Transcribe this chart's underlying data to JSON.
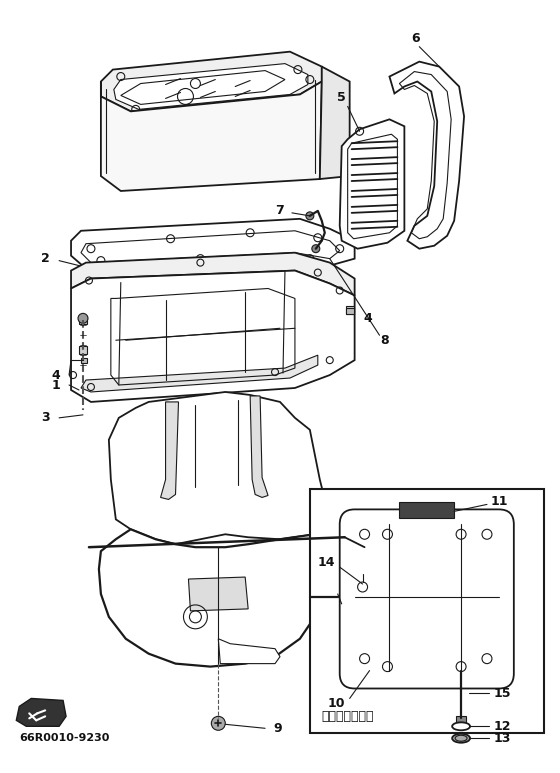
{
  "bg_color": "#ffffff",
  "line_color": "#1a1a1a",
  "text_color": "#111111",
  "diagram_code": "66R0010-9230",
  "japanese_text": "ウルトラロング",
  "figsize": [
    5.6,
    7.73
  ],
  "dpi": 100
}
